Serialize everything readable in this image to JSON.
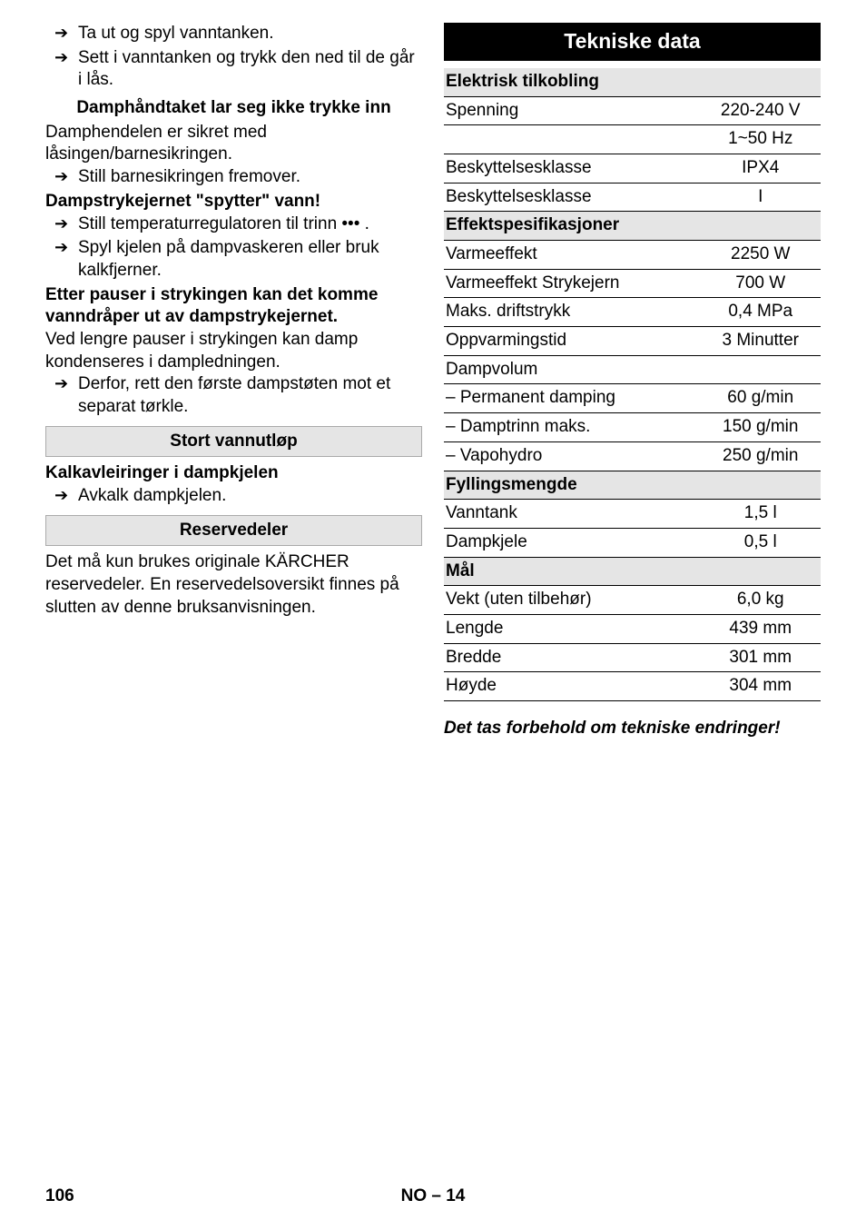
{
  "left": {
    "b1": "Ta ut og spyl vanntanken.",
    "b2": "Sett i vanntanken og trykk den ned til de går i lås.",
    "h1": "Damphåndtaket lar seg ikke trykke inn",
    "p1": "Damphendelen er sikret med låsingen/barnesikringen.",
    "b3": "Still barnesikringen fremover.",
    "h2": "Dampstrykejernet \"spytter\" vann!",
    "b4": "Still temperaturregulatoren til trinn ••• .",
    "b5": "Spyl kjelen på dampvaskeren eller bruk kalkfjerner.",
    "h3a": "Etter pauser i strykingen kan det komme",
    "h3b": "vanndråper ut av dampstrykejernet.",
    "p2": "Ved lengre pauser i strykingen kan damp kondenseres i dampledningen.",
    "b6": "Derfor, rett den første dampstøten mot et separat tørkle.",
    "sec1": "Stort vannutløp",
    "h4": "Kalkavleiringer i dampkjelen",
    "b7": "Avkalk dampkjelen.",
    "sec2": "Reservedeler",
    "p3": "Det må kun brukes originale KÄRCHER reservedeler. En reservedelsoversikt finnes på slutten av denne bruksanvisningen."
  },
  "right": {
    "header": "Tekniske data",
    "rows": [
      {
        "type": "section",
        "label": "Elektrisk tilkobling"
      },
      {
        "label": "Spenning",
        "value": "220-240 V"
      },
      {
        "label": "",
        "value": "1~50 Hz"
      },
      {
        "label": "Beskyttelsesklasse",
        "value": "IPX4"
      },
      {
        "label": "Beskyttelsesklasse",
        "value": "I"
      },
      {
        "type": "section",
        "label": "Effektspesifikasjoner"
      },
      {
        "label": "Varmeeffekt",
        "value": "2250 W"
      },
      {
        "label": "Varmeeffekt Strykejern",
        "value": "700 W"
      },
      {
        "label": "Maks. driftstrykk",
        "value": "0,4 MPa"
      },
      {
        "label": "Oppvarmingstid",
        "value": "3 Minutter"
      },
      {
        "label": "Dampvolum",
        "value": ""
      },
      {
        "label": "– Permanent damping",
        "value": "60 g/min"
      },
      {
        "label": "– Damptrinn maks.",
        "value": "150 g/min"
      },
      {
        "label": "– Vapohydro",
        "value": "250 g/min"
      },
      {
        "type": "section",
        "label": "Fyllingsmengde"
      },
      {
        "label": "Vanntank",
        "value": "1,5 l"
      },
      {
        "label": "Dampkjele",
        "value": "0,5 l"
      },
      {
        "type": "section",
        "label": "Mål"
      },
      {
        "label": "Vekt (uten tilbehør)",
        "value": "6,0 kg"
      },
      {
        "label": "Lengde",
        "value": "439 mm"
      },
      {
        "label": "Bredde",
        "value": "301 mm"
      },
      {
        "label": "Høyde",
        "value": "304 mm"
      }
    ],
    "footnote": "Det tas forbehold om tekniske endringer!"
  },
  "footer": {
    "page": "106",
    "code": "NO – 14"
  }
}
